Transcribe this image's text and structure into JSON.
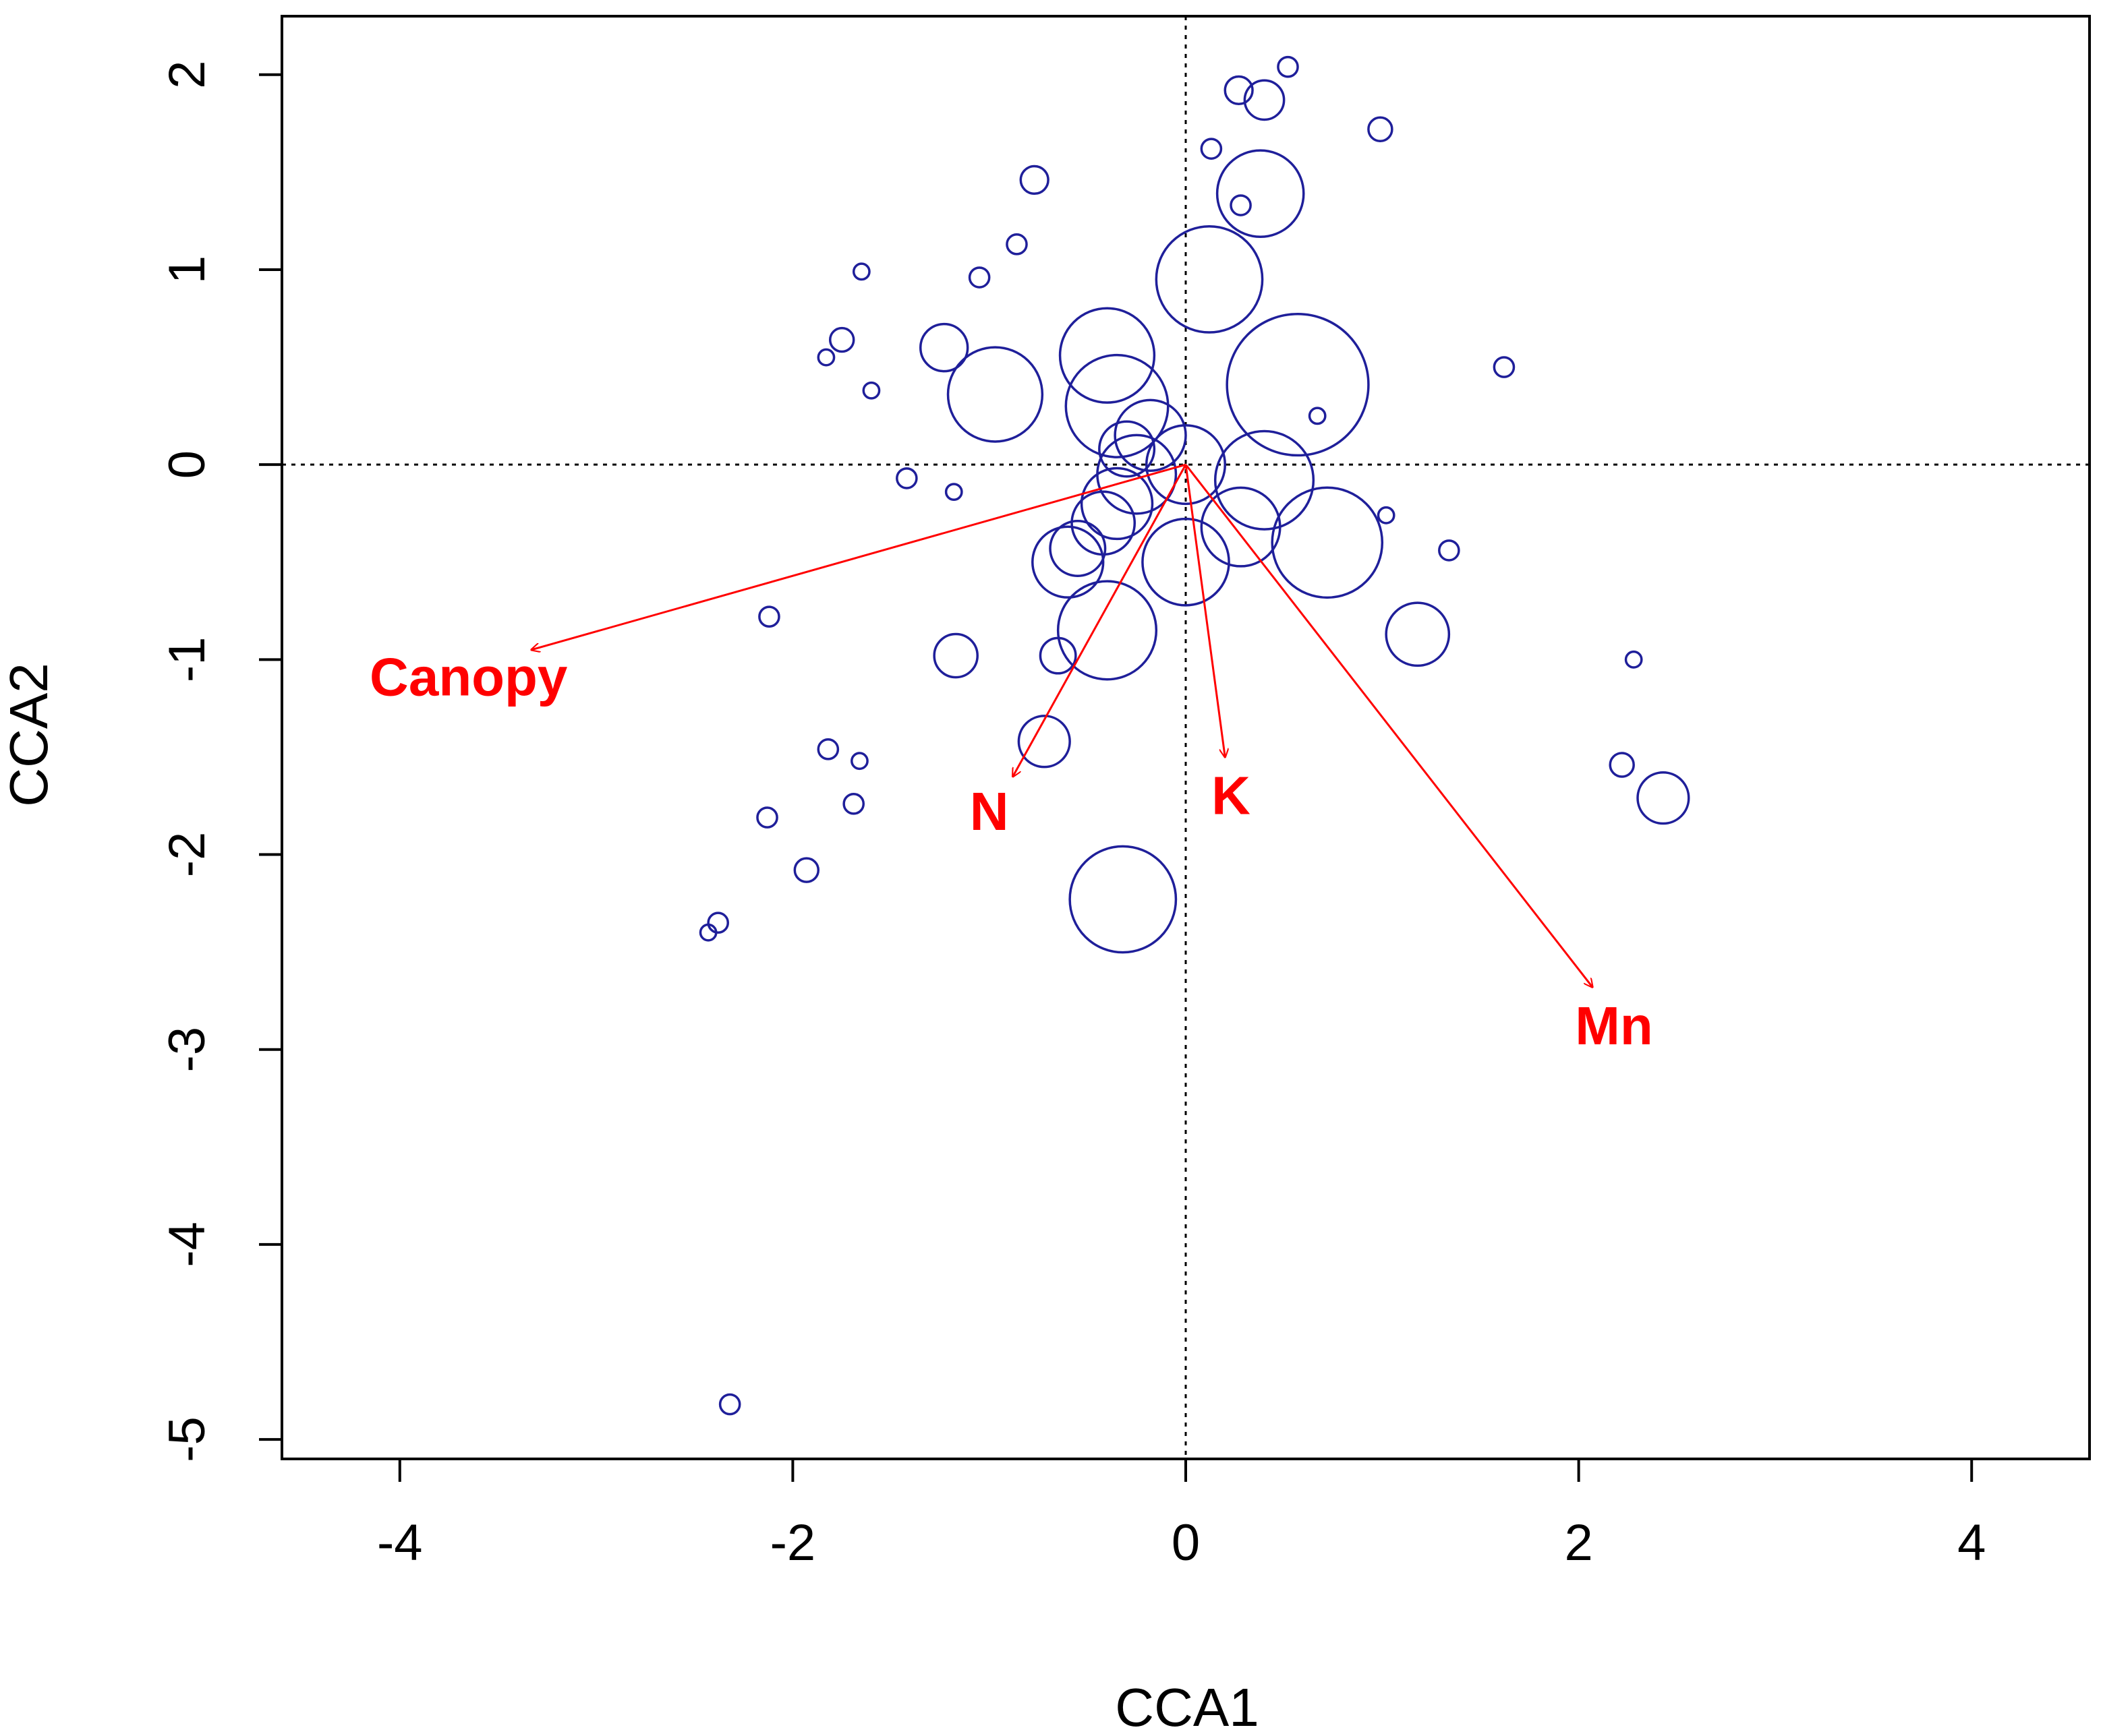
{
  "chart_data": {
    "type": "scatter",
    "subtype": "cca-biplot",
    "xlabel": "CCA1",
    "ylabel": "CCA2",
    "xlim": [
      -4.6,
      4.6
    ],
    "ylim": [
      -5.1,
      2.3
    ],
    "xticks": [
      -4,
      -2,
      0,
      2,
      4
    ],
    "yticks": [
      -5,
      -4,
      -3,
      -2,
      -1,
      0,
      1,
      2
    ],
    "reference_lines": {
      "x": 0,
      "y": 0,
      "style": "dotted"
    },
    "colors": {
      "points": "#1f1f9a",
      "vectors": "#ff0000",
      "axes": "#000000"
    },
    "points": [
      {
        "x": 0.52,
        "y": 2.04,
        "r": 0.05
      },
      {
        "x": 0.27,
        "y": 1.92,
        "r": 0.07
      },
      {
        "x": 0.4,
        "y": 1.87,
        "r": 0.1
      },
      {
        "x": 0.99,
        "y": 1.72,
        "r": 0.06
      },
      {
        "x": 0.13,
        "y": 1.62,
        "r": 0.05
      },
      {
        "x": -0.77,
        "y": 1.46,
        "r": 0.07
      },
      {
        "x": 0.38,
        "y": 1.39,
        "r": 0.22
      },
      {
        "x": 0.28,
        "y": 1.33,
        "r": 0.05
      },
      {
        "x": -0.86,
        "y": 1.13,
        "r": 0.05
      },
      {
        "x": -1.05,
        "y": 0.96,
        "r": 0.05
      },
      {
        "x": -1.65,
        "y": 0.99,
        "r": 0.04
      },
      {
        "x": 0.12,
        "y": 0.95,
        "r": 0.27
      },
      {
        "x": -1.75,
        "y": 0.64,
        "r": 0.06
      },
      {
        "x": -1.83,
        "y": 0.55,
        "r": 0.04
      },
      {
        "x": -1.23,
        "y": 0.6,
        "r": 0.12
      },
      {
        "x": -0.4,
        "y": 0.56,
        "r": 0.24
      },
      {
        "x": 0.57,
        "y": 0.41,
        "r": 0.36
      },
      {
        "x": 1.62,
        "y": 0.5,
        "r": 0.05
      },
      {
        "x": -1.6,
        "y": 0.38,
        "r": 0.04
      },
      {
        "x": -0.97,
        "y": 0.36,
        "r": 0.24
      },
      {
        "x": -0.35,
        "y": 0.3,
        "r": 0.26
      },
      {
        "x": 0.67,
        "y": 0.25,
        "r": 0.04
      },
      {
        "x": -0.18,
        "y": 0.15,
        "r": 0.18
      },
      {
        "x": -0.3,
        "y": 0.08,
        "r": 0.14
      },
      {
        "x": 0.0,
        "y": 0.0,
        "r": 0.2
      },
      {
        "x": -0.25,
        "y": -0.05,
        "r": 0.2
      },
      {
        "x": 0.4,
        "y": -0.08,
        "r": 0.25
      },
      {
        "x": -1.42,
        "y": -0.07,
        "r": 0.05
      },
      {
        "x": -1.18,
        "y": -0.14,
        "r": 0.04
      },
      {
        "x": -0.35,
        "y": -0.2,
        "r": 0.18
      },
      {
        "x": 0.72,
        "y": -0.4,
        "r": 0.28
      },
      {
        "x": 1.02,
        "y": -0.26,
        "r": 0.04
      },
      {
        "x": 0.28,
        "y": -0.32,
        "r": 0.2
      },
      {
        "x": -0.42,
        "y": -0.3,
        "r": 0.16
      },
      {
        "x": 1.34,
        "y": -0.44,
        "r": 0.05
      },
      {
        "x": -0.55,
        "y": -0.43,
        "r": 0.14
      },
      {
        "x": -0.6,
        "y": -0.5,
        "r": 0.18
      },
      {
        "x": 0.0,
        "y": -0.5,
        "r": 0.22
      },
      {
        "x": -0.4,
        "y": -0.85,
        "r": 0.25
      },
      {
        "x": -2.12,
        "y": -0.78,
        "r": 0.05
      },
      {
        "x": 1.18,
        "y": -0.87,
        "r": 0.16
      },
      {
        "x": -1.17,
        "y": -0.98,
        "r": 0.11
      },
      {
        "x": -0.65,
        "y": -0.98,
        "r": 0.09
      },
      {
        "x": 2.28,
        "y": -1.0,
        "r": 0.04
      },
      {
        "x": -0.72,
        "y": -1.42,
        "r": 0.13
      },
      {
        "x": -1.82,
        "y": -1.46,
        "r": 0.05
      },
      {
        "x": -1.66,
        "y": -1.52,
        "r": 0.04
      },
      {
        "x": 2.22,
        "y": -1.54,
        "r": 0.06
      },
      {
        "x": 2.43,
        "y": -1.71,
        "r": 0.13
      },
      {
        "x": -1.69,
        "y": -1.74,
        "r": 0.05
      },
      {
        "x": -2.13,
        "y": -1.81,
        "r": 0.05
      },
      {
        "x": -1.93,
        "y": -2.08,
        "r": 0.06
      },
      {
        "x": -0.32,
        "y": -2.23,
        "r": 0.27
      },
      {
        "x": -2.38,
        "y": -2.35,
        "r": 0.05
      },
      {
        "x": -2.43,
        "y": -2.4,
        "r": 0.04
      },
      {
        "x": -2.32,
        "y": -4.82,
        "r": 0.05
      }
    ],
    "vectors": [
      {
        "name": "Canopy",
        "x": -3.33,
        "y": -0.95,
        "label_x": -3.65,
        "label_y": -1.11
      },
      {
        "name": "N",
        "x": -0.88,
        "y": -1.6,
        "label_x": -1.0,
        "label_y": -1.8
      },
      {
        "name": "K",
        "x": 0.2,
        "y": -1.5,
        "label_x": 0.23,
        "label_y": -1.72
      },
      {
        "name": "Mn",
        "x": 2.07,
        "y": -2.68,
        "label_x": 2.18,
        "label_y": -2.9
      }
    ]
  }
}
